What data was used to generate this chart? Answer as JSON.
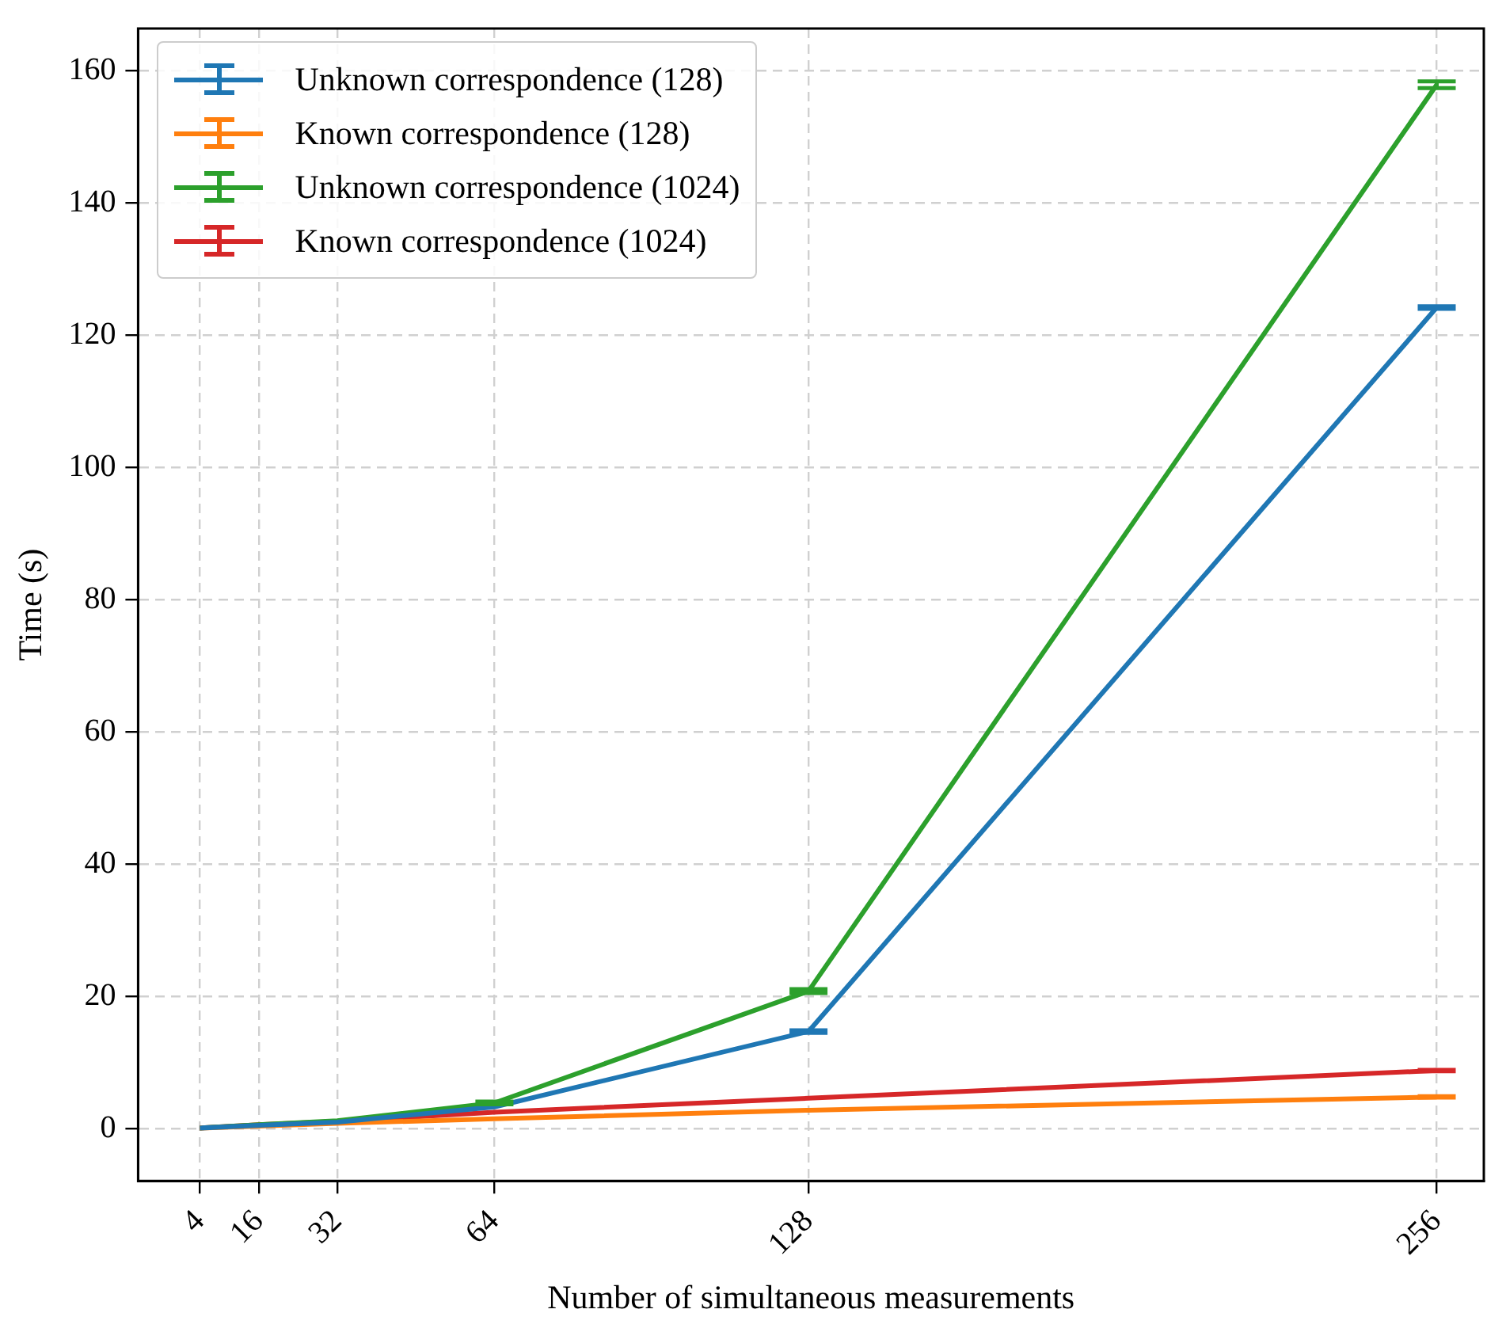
{
  "chart_data": {
    "type": "line",
    "xlabel": "Number of simultaneous measurements",
    "ylabel": "Time (s)",
    "x": [
      4,
      16,
      32,
      64,
      128,
      256
    ],
    "xlim": [
      -8.6,
      265.6
    ],
    "xticks": [
      4,
      16,
      32,
      64,
      128,
      256
    ],
    "ylim": [
      -7.9,
      166.4
    ],
    "yticks": [
      0,
      20,
      40,
      60,
      80,
      100,
      120,
      140,
      160
    ],
    "grid": true,
    "legend": "top left",
    "marker": "none",
    "line_style": "solid",
    "series": [
      {
        "name": "Unknown correspondence (128)",
        "color": "#1f77b4",
        "values": [
          0.1,
          0.5,
          1.0,
          3.3,
          14.7,
          124.2
        ],
        "errors": [
          null,
          null,
          null,
          null,
          0.2,
          0.2
        ]
      },
      {
        "name": "Known correspondence (128)",
        "color": "#ff7f0e",
        "values": [
          0.1,
          0.4,
          0.8,
          1.5,
          2.8,
          4.8
        ],
        "errors": [
          null,
          null,
          null,
          null,
          null,
          0.1
        ]
      },
      {
        "name": "Unknown correspondence (1024)",
        "color": "#2ca02c",
        "values": [
          0.1,
          0.6,
          1.2,
          3.9,
          20.8,
          157.9
        ],
        "errors": [
          null,
          null,
          null,
          0.2,
          0.3,
          0.5
        ]
      },
      {
        "name": "Known correspondence (1024)",
        "color": "#d62728",
        "values": [
          0.1,
          0.6,
          1.1,
          2.5,
          4.6,
          8.8
        ],
        "errors": [
          null,
          null,
          null,
          null,
          null,
          0.1
        ]
      }
    ]
  }
}
